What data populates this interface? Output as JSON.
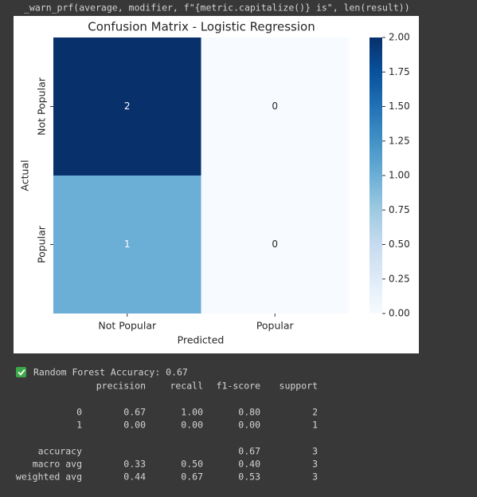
{
  "warning": "_warn_prf(average, modifier, f\"{metric.capitalize()} is\", len(result))",
  "chart_data": {
    "type": "heatmap",
    "title": "Confusion Matrix - Logistic Regression",
    "xlabel": "Predicted",
    "ylabel": "Actual",
    "x_categories": [
      "Not Popular",
      "Popular"
    ],
    "y_categories": [
      "Not Popular",
      "Popular"
    ],
    "values": [
      [
        2,
        0
      ],
      [
        1,
        0
      ]
    ],
    "colormap": "Blues",
    "clim": [
      0,
      2
    ],
    "cticks": [
      {
        "value": 0,
        "label": "0.00"
      },
      {
        "value": 0.25,
        "label": "0.25"
      },
      {
        "value": 0.5,
        "label": "0.50"
      },
      {
        "value": 0.75,
        "label": "0.75"
      },
      {
        "value": 1,
        "label": "1.00"
      },
      {
        "value": 1.25,
        "label": "1.25"
      },
      {
        "value": 1.5,
        "label": "1.50"
      },
      {
        "value": 1.75,
        "label": "1.75"
      },
      {
        "value": 2,
        "label": "2.00"
      }
    ]
  },
  "output": {
    "accuracy_line": "Random Forest Accuracy: 0.67",
    "report_header": [
      "precision",
      "recall",
      "f1-score",
      "support"
    ],
    "report_rows": [
      [
        "0",
        "0.67",
        "1.00",
        "0.80",
        "2"
      ],
      [
        "1",
        "0.00",
        "0.00",
        "0.00",
        "1"
      ],
      [
        "accuracy",
        null,
        null,
        "0.67",
        "3"
      ],
      [
        "macro avg",
        "0.33",
        "0.50",
        "0.40",
        "3"
      ],
      [
        "weighted avg",
        "0.44",
        "0.67",
        "0.53",
        "3"
      ]
    ]
  }
}
